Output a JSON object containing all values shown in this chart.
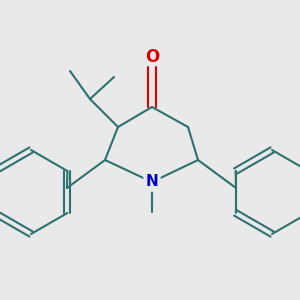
{
  "background_color": "#e9e9e9",
  "bond_color": "#2d7070",
  "nitrogen_color": "#0000cc",
  "oxygen_color": "#dd0000",
  "line_width": 1.5,
  "figsize": [
    3.0,
    3.0
  ],
  "dpi": 100
}
